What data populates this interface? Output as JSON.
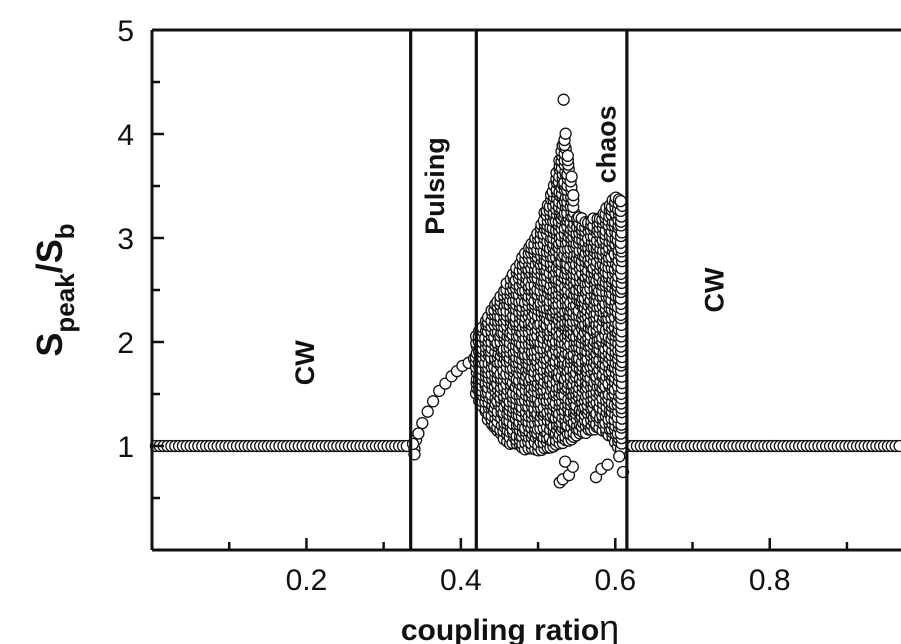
{
  "chart_data": {
    "type": "scatter",
    "title": "",
    "xlabel": "coupling ratio",
    "xlabel_symbol": "η",
    "ylabel": {
      "main": "S",
      "sub_peak": "peak",
      "slash": "/S",
      "sub_b": "b"
    },
    "xlim": [
      0.0,
      0.97
    ],
    "ylim": [
      0,
      5
    ],
    "x_ticks": [
      "0.2",
      "0.4",
      "0.6",
      "0.8"
    ],
    "x_tick_values": [
      0.2,
      0.4,
      0.6,
      0.8
    ],
    "y_ticks": [
      "1",
      "2",
      "3",
      "4",
      "5"
    ],
    "y_tick_values": [
      1,
      2,
      3,
      4,
      5
    ],
    "boundaries": [
      0.335,
      0.42,
      0.615
    ],
    "regions": [
      {
        "label": "CW",
        "x": 0.21,
        "y": 1.8
      },
      {
        "label": "Pulsing",
        "x": 0.378,
        "y": 3.5
      },
      {
        "label": "chaos",
        "x": 0.6,
        "y": 3.9
      },
      {
        "label": "CW",
        "x": 0.74,
        "y": 2.5
      }
    ],
    "series": [
      {
        "marker": "open-circle",
        "cw_low": {
          "x_start": 0.005,
          "x_end": 0.33,
          "step": 0.005,
          "y": 1.0
        },
        "cw_high": {
          "x_start": 0.618,
          "x_end": 0.97,
          "step": 0.005,
          "y": 1.0
        },
        "pulsing": [
          [
            0.34,
            0.97
          ],
          [
            0.342,
            1.06
          ],
          [
            0.345,
            1.12
          ],
          [
            0.35,
            1.22
          ],
          [
            0.357,
            1.33
          ],
          [
            0.364,
            1.43
          ],
          [
            0.372,
            1.53
          ],
          [
            0.38,
            1.6
          ],
          [
            0.388,
            1.67
          ],
          [
            0.395,
            1.72
          ],
          [
            0.402,
            1.77
          ],
          [
            0.41,
            1.8
          ],
          [
            0.417,
            1.84
          ],
          [
            0.34,
            0.92
          ],
          [
            0.338,
            1.02
          ]
        ],
        "chaos_envelope": [
          {
            "x": 0.42,
            "ymin": 1.5,
            "ymax": 2.05
          },
          {
            "x": 0.44,
            "ymin": 1.2,
            "ymax": 2.3
          },
          {
            "x": 0.46,
            "ymin": 1.05,
            "ymax": 2.55
          },
          {
            "x": 0.48,
            "ymin": 0.98,
            "ymax": 2.8
          },
          {
            "x": 0.5,
            "ymin": 0.97,
            "ymax": 3.05
          },
          {
            "x": 0.52,
            "ymin": 1.0,
            "ymax": 3.5
          },
          {
            "x": 0.535,
            "ymin": 1.05,
            "ymax": 4.0
          },
          {
            "x": 0.55,
            "ymin": 1.1,
            "ymax": 3.2
          },
          {
            "x": 0.565,
            "ymin": 1.15,
            "ymax": 3.15
          },
          {
            "x": 0.58,
            "ymin": 1.18,
            "ymax": 3.2
          },
          {
            "x": 0.6,
            "ymin": 1.05,
            "ymax": 3.4
          },
          {
            "x": 0.612,
            "ymin": 0.85,
            "ymax": 3.35
          }
        ],
        "outliers": [
          [
            0.533,
            4.33
          ],
          [
            0.528,
            0.65
          ],
          [
            0.532,
            0.68
          ],
          [
            0.54,
            0.72
          ],
          [
            0.545,
            0.8
          ],
          [
            0.535,
            0.85
          ],
          [
            0.575,
            0.7
          ],
          [
            0.582,
            0.78
          ],
          [
            0.59,
            0.82
          ],
          [
            0.605,
            0.9
          ],
          [
            0.61,
            0.75
          ]
        ]
      }
    ]
  }
}
